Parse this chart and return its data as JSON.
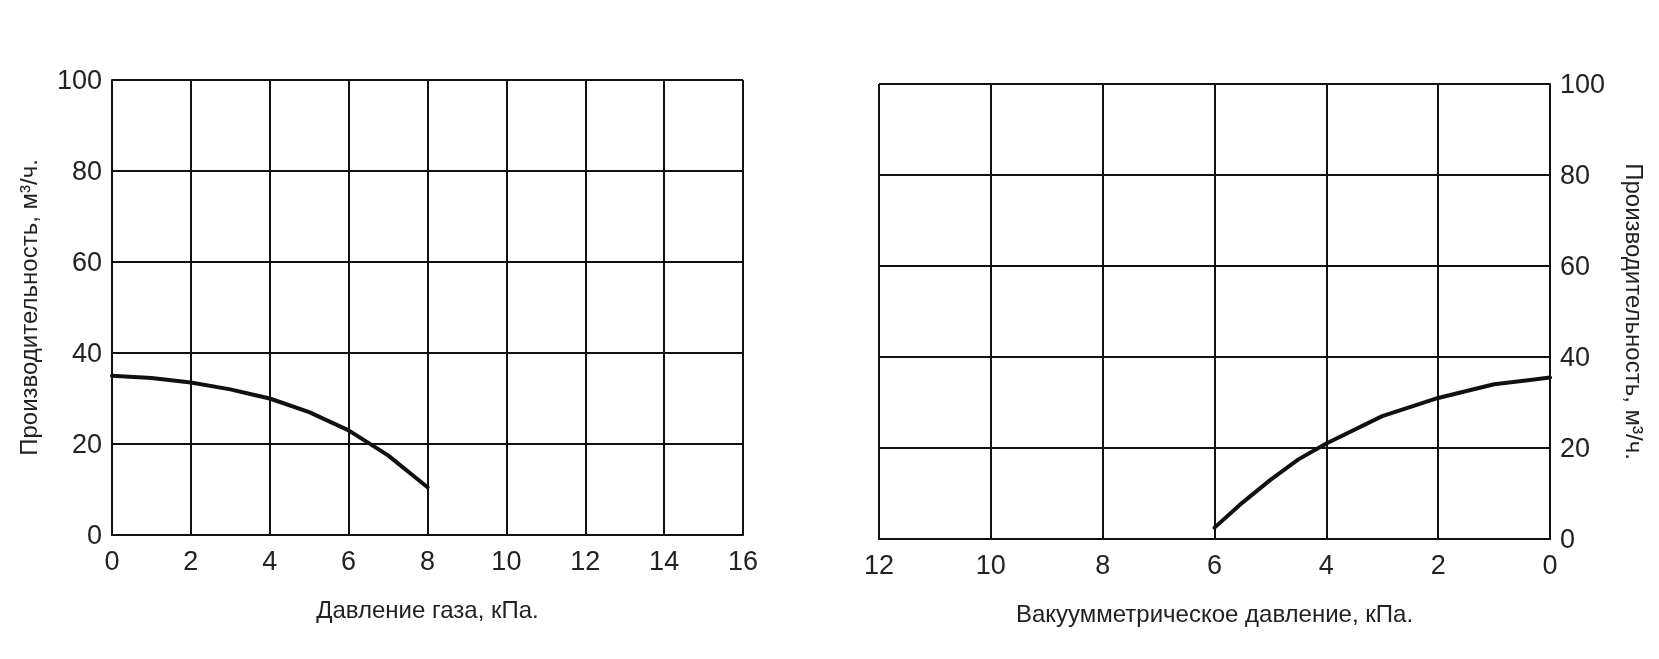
{
  "chart_data": [
    {
      "type": "line",
      "xlabel": "Давление газа, кПа.",
      "ylabel": "Производительность, м³/ч.",
      "xlim": [
        0,
        16
      ],
      "xticks": [
        0,
        2,
        4,
        6,
        8,
        10,
        12,
        14,
        16
      ],
      "ylim": [
        0,
        100
      ],
      "yticks": [
        0,
        20,
        40,
        60,
        80,
        100
      ],
      "grid": true,
      "marker": "none",
      "line_style": "solid",
      "series": [
        {
          "color": "#111111",
          "x": [
            0,
            1,
            2,
            3,
            4,
            5,
            6,
            7,
            8
          ],
          "values": [
            35,
            34.5,
            33.5,
            32,
            30,
            27,
            23,
            17.5,
            10.5
          ]
        }
      ]
    },
    {
      "type": "line",
      "xlabel": "Вакуумметрическое давление, кПа.",
      "y2label": "Производительность, м³/ч.",
      "xlim": [
        12,
        0
      ],
      "xticks": [
        12,
        10,
        8,
        6,
        4,
        2,
        0
      ],
      "y2lim": [
        0,
        100
      ],
      "y2ticks": [
        0,
        20,
        40,
        60,
        80,
        100
      ],
      "grid": true,
      "marker": "none",
      "line_style": "solid",
      "series": [
        {
          "color": "#111111",
          "axis": "y2",
          "x": [
            6,
            5.5,
            5,
            4.5,
            4,
            3,
            2,
            1,
            0
          ],
          "values": [
            2.5,
            8,
            13,
            17.5,
            21,
            27,
            31,
            34,
            35.5
          ]
        }
      ]
    }
  ]
}
